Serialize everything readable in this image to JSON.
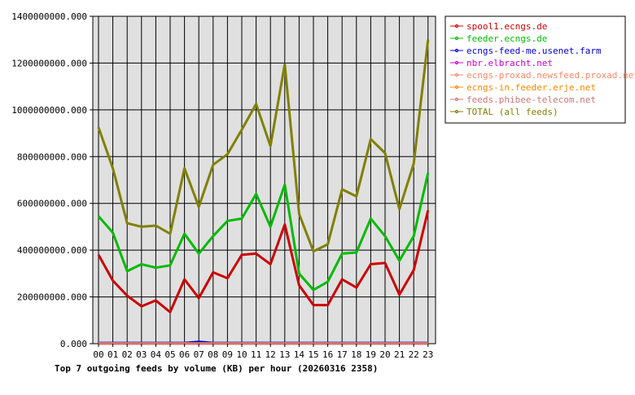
{
  "chart_data": {
    "type": "line",
    "title": "Top 7 outgoing feeds by volume (KB) per hour (20260316 2358)",
    "x": [
      "00",
      "01",
      "02",
      "03",
      "04",
      "05",
      "06",
      "07",
      "08",
      "09",
      "10",
      "11",
      "12",
      "13",
      "14",
      "15",
      "16",
      "17",
      "18",
      "19",
      "20",
      "21",
      "22",
      "23"
    ],
    "ylim": [
      0,
      1400000000
    ],
    "yticks": [
      0,
      200000000,
      400000000,
      600000000,
      800000000,
      1000000000,
      1200000000,
      1400000000
    ],
    "ytick_labels": [
      "0.000",
      "200000000.000",
      "400000000.000",
      "600000000.000",
      "800000000.000",
      "1000000000.000",
      "1200000000.000",
      "1400000000.000"
    ],
    "grid": true,
    "legend_position": "right",
    "series": [
      {
        "name": "spool1.ecngs.de",
        "color": "#cc0000",
        "values": [
          380000000,
          270000000,
          205000000,
          160000000,
          185000000,
          135000000,
          275000000,
          195000000,
          305000000,
          280000000,
          380000000,
          385000000,
          340000000,
          510000000,
          250000000,
          165000000,
          165000000,
          275000000,
          240000000,
          340000000,
          345000000,
          210000000,
          315000000,
          570000000
        ]
      },
      {
        "name": "feeder.ecngs.de",
        "color": "#00bb00",
        "values": [
          545000000,
          475000000,
          310000000,
          340000000,
          325000000,
          335000000,
          470000000,
          385000000,
          460000000,
          525000000,
          535000000,
          640000000,
          500000000,
          680000000,
          300000000,
          230000000,
          265000000,
          385000000,
          390000000,
          535000000,
          460000000,
          355000000,
          460000000,
          730000000
        ]
      },
      {
        "name": "ecngs-feed-me.usenet.farm",
        "color": "#0000cc",
        "values": [
          3000000,
          3000000,
          3000000,
          3000000,
          3000000,
          3000000,
          3000000,
          8000000,
          3000000,
          3000000,
          3000000,
          3000000,
          3000000,
          3000000,
          3000000,
          3000000,
          3000000,
          3000000,
          3000000,
          3000000,
          3000000,
          3000000,
          3000000,
          3000000
        ]
      },
      {
        "name": "nbr.elbracht.net",
        "color": "#cc00cc",
        "values": [
          1000000,
          1000000,
          1000000,
          1000000,
          1000000,
          1000000,
          1000000,
          1000000,
          1000000,
          1000000,
          1000000,
          1000000,
          1000000,
          1000000,
          1000000,
          1000000,
          1000000,
          1000000,
          1000000,
          1000000,
          1000000,
          1000000,
          1000000,
          1000000
        ]
      },
      {
        "name": "ecngs-proxad.newsfeed.proxad.net",
        "color": "#ff8866",
        "values": [
          1000000,
          1000000,
          1000000,
          1000000,
          1000000,
          1000000,
          1000000,
          1000000,
          1000000,
          1000000,
          1000000,
          1000000,
          1000000,
          1000000,
          1000000,
          1000000,
          1000000,
          1000000,
          1000000,
          1000000,
          1000000,
          1000000,
          1000000,
          1000000
        ]
      },
      {
        "name": "ecngs-in.feeder.erje.net",
        "color": "#ff8800",
        "values": [
          1000000,
          1000000,
          1000000,
          1000000,
          1000000,
          1000000,
          1000000,
          1000000,
          1000000,
          1000000,
          1000000,
          1000000,
          1000000,
          1000000,
          1000000,
          1000000,
          1000000,
          1000000,
          1000000,
          1000000,
          1000000,
          1000000,
          1000000,
          1000000
        ]
      },
      {
        "name": "feeds.phibee-telecom.net",
        "color": "#cc7777",
        "values": [
          1000000,
          1000000,
          1000000,
          1000000,
          1000000,
          1000000,
          1000000,
          1000000,
          1000000,
          1000000,
          1000000,
          1000000,
          1000000,
          1000000,
          1000000,
          1000000,
          1000000,
          1000000,
          1000000,
          1000000,
          1000000,
          1000000,
          1000000,
          1000000
        ]
      },
      {
        "name": "TOTAL (all feeds)",
        "color": "#808000",
        "values": [
          925000000,
          750000000,
          515000000,
          500000000,
          505000000,
          470000000,
          750000000,
          585000000,
          765000000,
          810000000,
          915000000,
          1025000000,
          845000000,
          1195000000,
          555000000,
          395000000,
          425000000,
          660000000,
          630000000,
          875000000,
          815000000,
          575000000,
          770000000,
          1300000000
        ]
      }
    ]
  }
}
